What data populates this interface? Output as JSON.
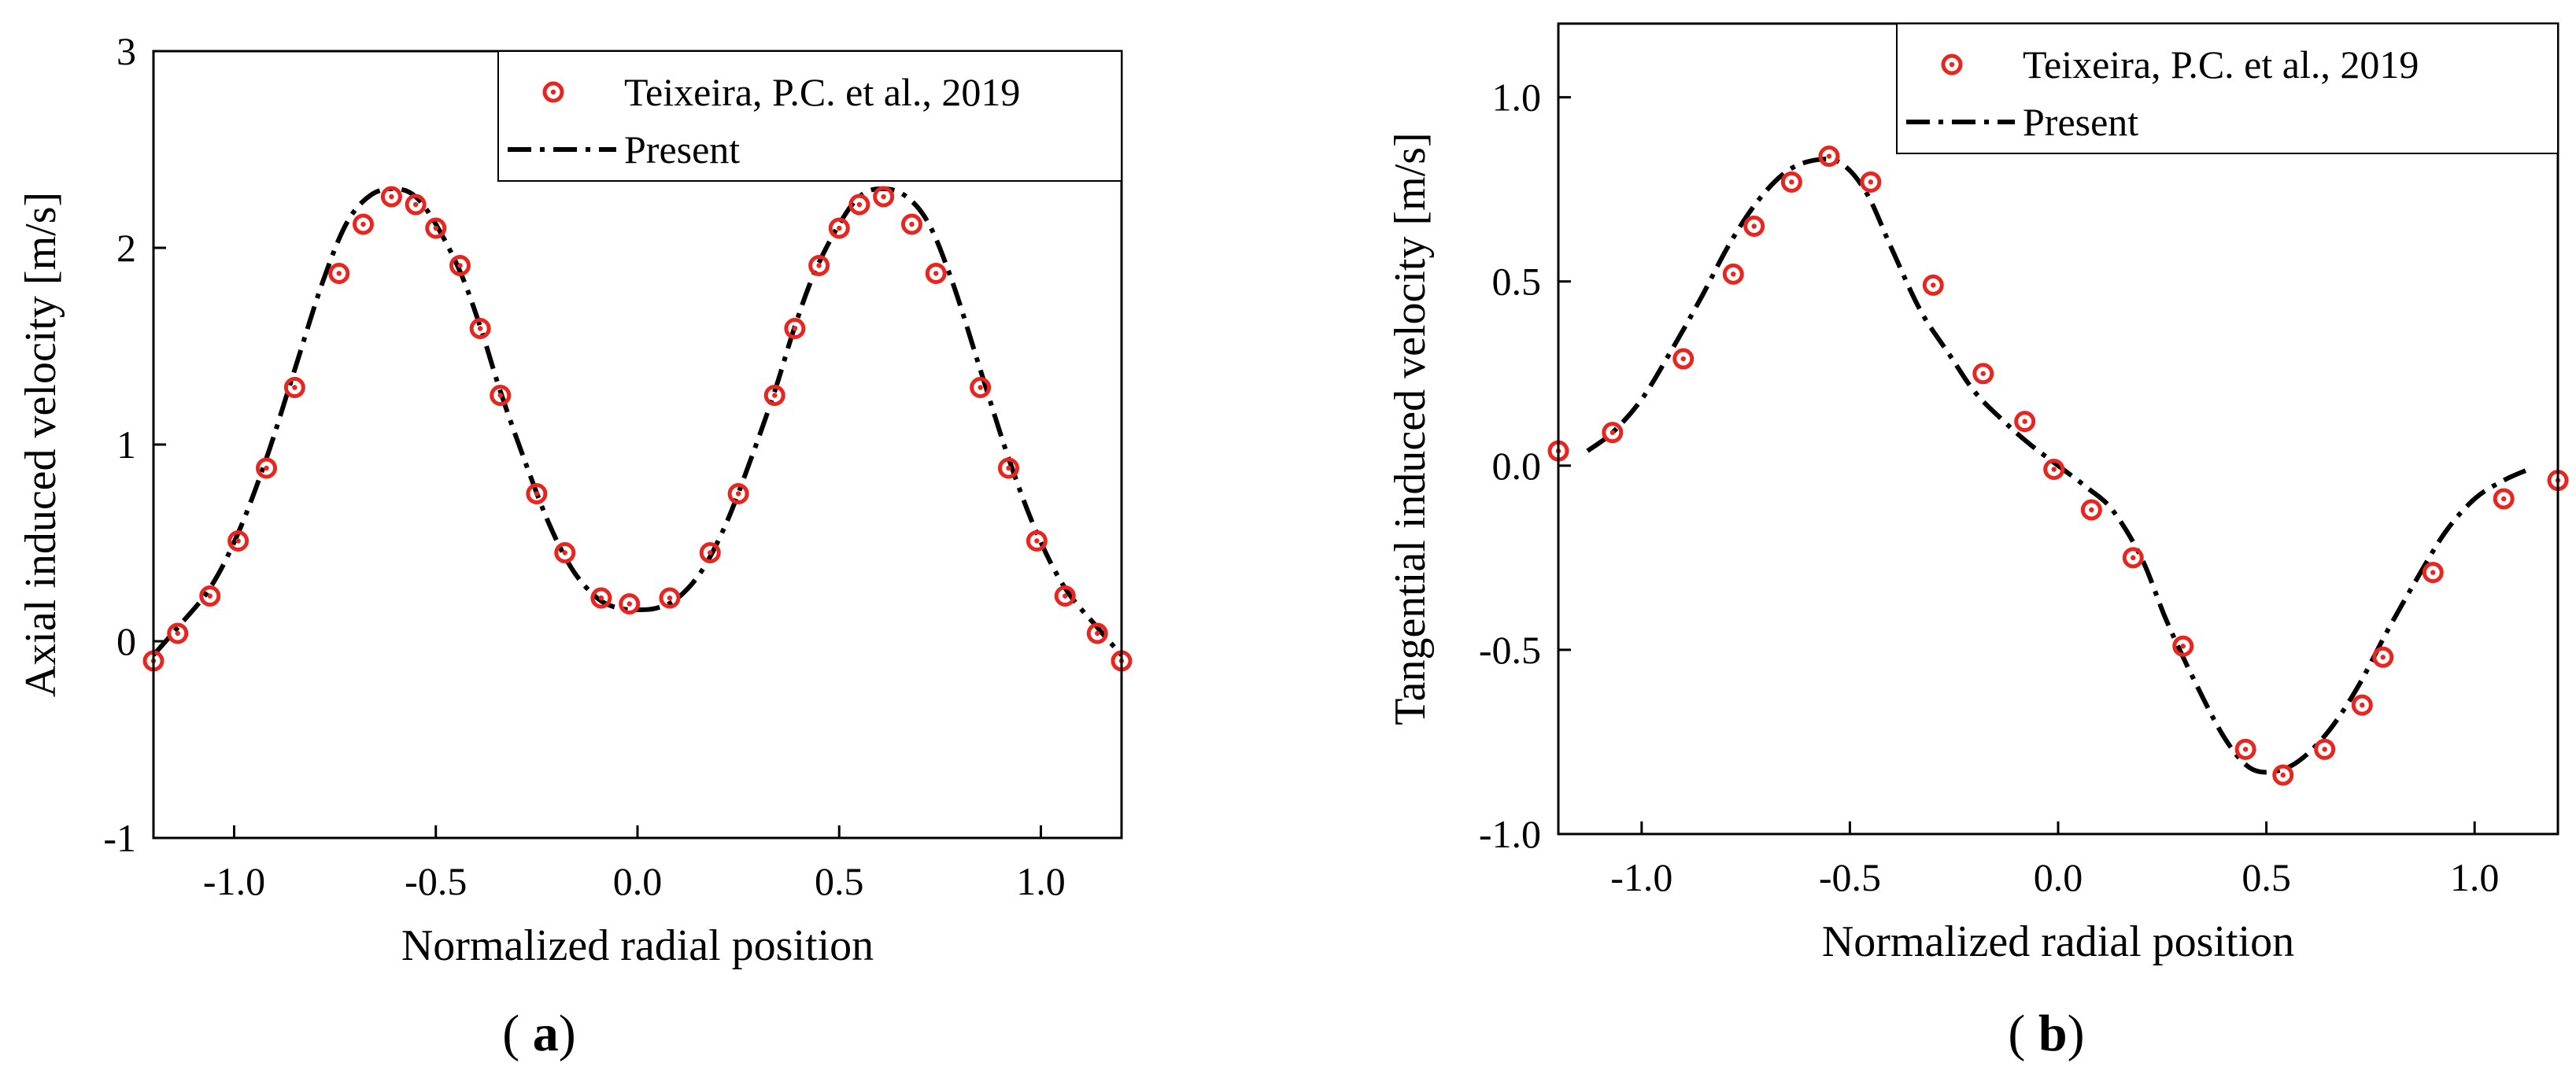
{
  "figure": {
    "panels": [
      {
        "panel_label": "(a)",
        "panel_letter": "a"
      },
      {
        "panel_label": "(b)",
        "panel_letter": "b"
      }
    ]
  },
  "chart_data": [
    {
      "type": "line",
      "title": "",
      "xlabel": "Normalized radial position",
      "ylabel": "Axial induced velocity [m/s]",
      "xlim": [
        -1.2,
        1.2
      ],
      "ylim": [
        -1,
        3
      ],
      "xticks": [
        -1.0,
        -0.5,
        0.0,
        0.5,
        1.0
      ],
      "xtick_labels": [
        "-1.0",
        "-0.5",
        "0.0",
        "0.5",
        "1.0"
      ],
      "yticks": [
        -1,
        0,
        1,
        2,
        3
      ],
      "ytick_labels": [
        "-1",
        "0",
        "1",
        "2",
        "3"
      ],
      "grid": false,
      "legend": {
        "position": "top-right",
        "entries": [
          "Teixeira, P.C. et al., 2019",
          "Present"
        ]
      },
      "series": [
        {
          "name": "Teixeira, P.C. et al., 2019",
          "style": "markers",
          "color": "#e8251f",
          "marker": "circle-dot",
          "x": [
            -1.2,
            -1.14,
            -1.06,
            -0.99,
            -0.92,
            -0.85,
            -0.74,
            -0.68,
            -0.61,
            -0.55,
            -0.5,
            -0.44,
            -0.39,
            -0.34,
            -0.25,
            -0.18,
            -0.09,
            -0.02,
            0.08,
            0.18,
            0.25,
            0.34,
            0.39,
            0.45,
            0.5,
            0.55,
            0.61,
            0.68,
            0.74,
            0.85,
            0.92,
            0.99,
            1.06,
            1.14,
            1.2
          ],
          "y": [
            -0.1,
            0.04,
            0.23,
            0.51,
            0.88,
            1.29,
            1.87,
            2.12,
            2.26,
            2.22,
            2.1,
            1.91,
            1.59,
            1.25,
            0.75,
            0.45,
            0.22,
            0.19,
            0.22,
            0.45,
            0.75,
            1.25,
            1.59,
            1.91,
            2.1,
            2.22,
            2.26,
            2.12,
            1.87,
            1.29,
            0.88,
            0.51,
            0.23,
            0.04,
            -0.1
          ]
        },
        {
          "name": "Present",
          "style": "dash-dot",
          "color": "#000000",
          "x": [
            -1.2,
            -1.14,
            -1.06,
            -0.99,
            -0.92,
            -0.85,
            -0.78,
            -0.72,
            -0.66,
            -0.6,
            -0.55,
            -0.5,
            -0.44,
            -0.39,
            -0.34,
            -0.28,
            -0.22,
            -0.16,
            -0.1,
            -0.05,
            0.0,
            0.05,
            0.1,
            0.16,
            0.22,
            0.28,
            0.34,
            0.39,
            0.44,
            0.5,
            0.55,
            0.6,
            0.66,
            0.72,
            0.78,
            0.85,
            0.92,
            0.99,
            1.06,
            1.14,
            1.2
          ],
          "y": [
            -0.07,
            0.07,
            0.27,
            0.55,
            0.93,
            1.38,
            1.83,
            2.13,
            2.27,
            2.3,
            2.26,
            2.12,
            1.88,
            1.6,
            1.27,
            0.92,
            0.6,
            0.36,
            0.22,
            0.17,
            0.16,
            0.17,
            0.22,
            0.36,
            0.6,
            0.92,
            1.27,
            1.6,
            1.88,
            2.12,
            2.26,
            2.3,
            2.27,
            2.13,
            1.83,
            1.38,
            0.93,
            0.55,
            0.27,
            0.07,
            -0.07
          ]
        }
      ]
    },
    {
      "type": "line",
      "title": "",
      "xlabel": "Normalized radial position",
      "ylabel": "Tangential induced velocity [m/s]",
      "xlim": [
        -1.2,
        1.2
      ],
      "ylim": [
        -1.0,
        1.2
      ],
      "xticks": [
        -1.0,
        -0.5,
        0.0,
        0.5,
        1.0
      ],
      "xtick_labels": [
        "-1.0",
        "-0.5",
        "0.0",
        "0.5",
        "1.0"
      ],
      "yticks": [
        -1.0,
        -0.5,
        0.0,
        0.5,
        1.0
      ],
      "ytick_labels": [
        "-1.0",
        "-0.5",
        "0.0",
        "0.5",
        "1.0"
      ],
      "grid": false,
      "legend": {
        "position": "top-right",
        "entries": [
          "Teixeira, P.C. et al., 2019",
          "Present"
        ]
      },
      "series": [
        {
          "name": "Teixeira, P.C. et al., 2019",
          "style": "markers",
          "color": "#e8251f",
          "marker": "circle-dot",
          "x": [
            -1.2,
            -1.07,
            -0.9,
            -0.78,
            -0.73,
            -0.64,
            -0.55,
            -0.45,
            -0.3,
            -0.18,
            -0.08,
            -0.01,
            0.08,
            0.18,
            0.3,
            0.45,
            0.54,
            0.64,
            0.73,
            0.78,
            0.9,
            1.07,
            1.2
          ],
          "y": [
            0.04,
            0.09,
            0.29,
            0.52,
            0.65,
            0.77,
            0.84,
            0.77,
            0.49,
            0.25,
            0.12,
            -0.01,
            -0.12,
            -0.25,
            -0.49,
            -0.77,
            -0.84,
            -0.77,
            -0.65,
            -0.52,
            -0.29,
            -0.09,
            -0.04
          ]
        },
        {
          "name": "Present",
          "style": "dash-dot",
          "color": "#000000",
          "x": [
            -1.13,
            -1.07,
            -1.0,
            -0.93,
            -0.86,
            -0.79,
            -0.72,
            -0.65,
            -0.58,
            -0.52,
            -0.46,
            -0.4,
            -0.33,
            -0.26,
            -0.2,
            -0.13,
            -0.07,
            0.0,
            0.07,
            0.13,
            0.2,
            0.26,
            0.33,
            0.4,
            0.46,
            0.52,
            0.58,
            0.65,
            0.72,
            0.79,
            0.86,
            0.93,
            1.0,
            1.07,
            1.13
          ],
          "y": [
            0.04,
            0.09,
            0.18,
            0.31,
            0.45,
            0.6,
            0.72,
            0.8,
            0.83,
            0.82,
            0.74,
            0.59,
            0.42,
            0.3,
            0.2,
            0.12,
            0.06,
            0.0,
            -0.06,
            -0.12,
            -0.25,
            -0.42,
            -0.59,
            -0.74,
            -0.82,
            -0.83,
            -0.8,
            -0.72,
            -0.6,
            -0.45,
            -0.31,
            -0.18,
            -0.09,
            -0.04,
            -0.01
          ]
        }
      ]
    }
  ]
}
